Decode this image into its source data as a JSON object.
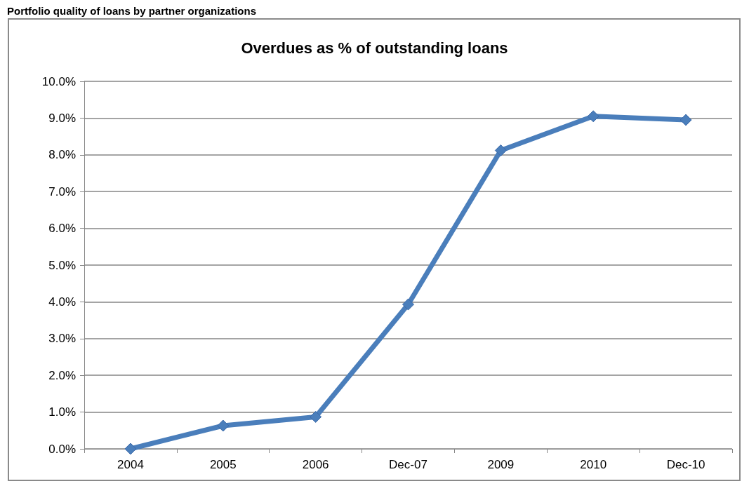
{
  "chart_data": {
    "type": "line",
    "title": "Overdues as % of outstanding loans",
    "annotations": [
      "Portfolio quality of loans by partner organizations"
    ],
    "categories": [
      "2004",
      "2005",
      "2006",
      "Dec-07",
      "2009",
      "2010",
      "Dec-10"
    ],
    "series": [
      {
        "color": "#4a7ebb",
        "values": [
          0,
          0.63,
          0.87,
          3.93,
          8.12,
          9.05,
          8.95
        ]
      }
    ],
    "ylim": [
      0,
      10
    ],
    "yticks": [
      {
        "value": 0,
        "label": "0.0%"
      },
      {
        "value": 1,
        "label": "1.0%"
      },
      {
        "value": 2,
        "label": "2.0%"
      },
      {
        "value": 3,
        "label": "3.0%"
      },
      {
        "value": 4,
        "label": "4.0%"
      },
      {
        "value": 5,
        "label": "5.0%"
      },
      {
        "value": 6,
        "label": "6.0%"
      },
      {
        "value": 7,
        "label": "7.0%"
      },
      {
        "value": 8,
        "label": "8.0%"
      },
      {
        "value": 9,
        "label": "9.0%"
      },
      {
        "value": 10,
        "label": "10.0%"
      }
    ],
    "grid": "y",
    "marker": "diamond",
    "line_style": "solid"
  }
}
